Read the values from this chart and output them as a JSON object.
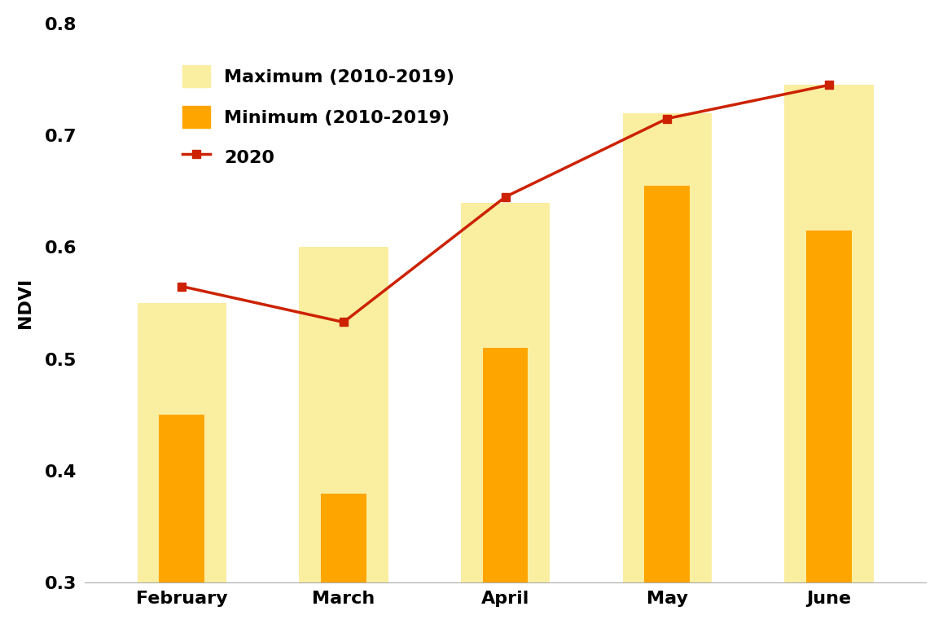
{
  "categories": [
    "February",
    "March",
    "April",
    "May",
    "June"
  ],
  "max_values": [
    0.55,
    0.6,
    0.64,
    0.72,
    0.745
  ],
  "min_values": [
    0.45,
    0.38,
    0.51,
    0.655,
    0.615
  ],
  "line_2020": [
    0.565,
    0.533,
    0.645,
    0.715,
    0.745
  ],
  "max_color": "#FAEEA0",
  "min_color": "#FFA500",
  "line_color": "#CC2200",
  "ylabel": "NDVI",
  "ylim": [
    0.3,
    0.8
  ],
  "yticks": [
    0.3,
    0.4,
    0.5,
    0.6,
    0.7,
    0.8
  ],
  "legend_max": "Maximum (2010-2019)",
  "legend_min": "Minimum (2010-2019)",
  "legend_line": "2020",
  "max_bar_width": 0.55,
  "min_bar_width": 0.28,
  "tick_fontsize": 16,
  "label_fontsize": 16,
  "legend_fontsize": 16,
  "background_color": "#ffffff"
}
